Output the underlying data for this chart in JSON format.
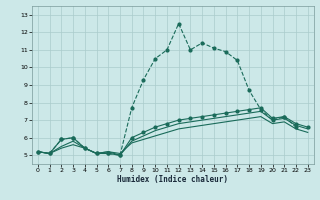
{
  "xlabel": "Humidex (Indice chaleur)",
  "bg_color": "#cce8e8",
  "grid_color": "#aacccc",
  "line_color": "#1a6b5a",
  "xlim": [
    -0.5,
    23.5
  ],
  "ylim": [
    4.5,
    13.5
  ],
  "xticks": [
    0,
    1,
    2,
    3,
    4,
    5,
    6,
    7,
    8,
    9,
    10,
    11,
    12,
    13,
    14,
    15,
    16,
    17,
    18,
    19,
    20,
    21,
    22,
    23
  ],
  "yticks": [
    5,
    6,
    7,
    8,
    9,
    10,
    11,
    12,
    13
  ],
  "line1_x": [
    0,
    1,
    2,
    3,
    4,
    5,
    6,
    7,
    8,
    9,
    10,
    11,
    12,
    13,
    14,
    15,
    16,
    17,
    18,
    19,
    20,
    21,
    22
  ],
  "line1_y": [
    5.2,
    5.1,
    5.9,
    6.0,
    5.4,
    5.1,
    5.1,
    5.0,
    7.7,
    9.3,
    10.5,
    11.0,
    12.5,
    11.0,
    11.4,
    11.1,
    10.9,
    10.4,
    8.7,
    7.6,
    7.0,
    7.2,
    6.6
  ],
  "line2_x": [
    0,
    1,
    2,
    3,
    4,
    5,
    6,
    7,
    8,
    9,
    10,
    11,
    12,
    13,
    14,
    15,
    16,
    17,
    18,
    19,
    20,
    21,
    22,
    23
  ],
  "line2_y": [
    5.2,
    5.1,
    5.9,
    6.0,
    5.4,
    5.1,
    5.1,
    5.0,
    6.0,
    6.3,
    6.6,
    6.8,
    7.0,
    7.1,
    7.2,
    7.3,
    7.4,
    7.5,
    7.6,
    7.7,
    7.1,
    7.2,
    6.8,
    6.6
  ],
  "line3_x": [
    0,
    1,
    2,
    3,
    4,
    5,
    6,
    7,
    8,
    9,
    10,
    11,
    12,
    13,
    14,
    15,
    16,
    17,
    18,
    19,
    20,
    21,
    22,
    23
  ],
  "line3_y": [
    5.2,
    5.1,
    5.5,
    5.8,
    5.4,
    5.1,
    5.2,
    5.0,
    5.8,
    6.1,
    6.4,
    6.6,
    6.8,
    6.9,
    7.0,
    7.1,
    7.2,
    7.3,
    7.4,
    7.5,
    7.0,
    7.1,
    6.7,
    6.5
  ],
  "line4_x": [
    0,
    1,
    2,
    3,
    4,
    5,
    6,
    7,
    8,
    9,
    10,
    11,
    12,
    13,
    14,
    15,
    16,
    17,
    18,
    19,
    20,
    21,
    22,
    23
  ],
  "line4_y": [
    5.2,
    5.1,
    5.4,
    5.6,
    5.4,
    5.1,
    5.2,
    5.1,
    5.7,
    5.9,
    6.1,
    6.3,
    6.5,
    6.6,
    6.7,
    6.8,
    6.9,
    7.0,
    7.1,
    7.2,
    6.8,
    6.9,
    6.5,
    6.3
  ]
}
